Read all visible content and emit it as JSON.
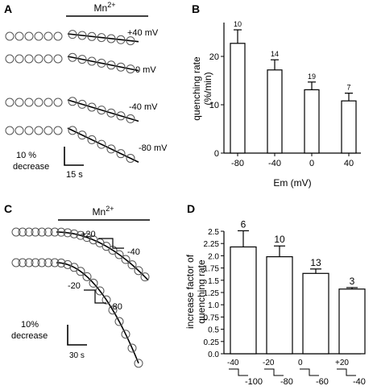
{
  "panels": {
    "A": {
      "label": "A",
      "stimulus": "Mn",
      "stimulus_sup": "2+",
      "traces": [
        {
          "label": "+40 mV"
        },
        {
          "label": "0 mV"
        },
        {
          "label": "-40 mV"
        },
        {
          "label": "-80 mV"
        }
      ],
      "scale_y": "10 %",
      "scale_y2": "decrease",
      "scale_x": "15 s"
    },
    "B": {
      "label": "B"
    },
    "C": {
      "label": "C",
      "stimulus": "Mn",
      "stimulus_sup": "2+",
      "step1_from": "+20",
      "step1_to": "-40",
      "step2_from": "-20",
      "step2_to": "-80",
      "scale_y": "10%",
      "scale_y2": "decrease",
      "scale_x": "30 s"
    },
    "D": {
      "label": "D",
      "protocols": [
        {
          "from": "-40",
          "to": "-100"
        },
        {
          "from": "-20",
          "to": "-80"
        },
        {
          "from": "0",
          "to": "-60"
        },
        {
          "from": "+20",
          "to": "-40"
        }
      ]
    }
  },
  "chart_data": [
    {
      "panel": "B",
      "type": "bar",
      "categories": [
        "-80",
        "-40",
        "0",
        "40"
      ],
      "values": [
        22.7,
        17.2,
        13.1,
        10.8
      ],
      "errors": [
        2.8,
        2.1,
        1.6,
        1.6
      ],
      "n": [
        "10",
        "14",
        "19",
        "7"
      ],
      "xlabel": "Em (mV)",
      "ylabel": "quenching rate",
      "ylabel2": "(%/min)",
      "ylim": [
        0,
        27
      ],
      "yticks": [
        0,
        10,
        20
      ],
      "ytick_labels": [
        "0",
        "10",
        "20"
      ],
      "grid": false
    },
    {
      "panel": "D",
      "type": "bar",
      "categories": [
        "-40 → -100",
        "-20 → -80",
        "0 → -60",
        "+20 → -40"
      ],
      "values": [
        2.18,
        1.98,
        1.64,
        1.32
      ],
      "errors": [
        0.33,
        0.22,
        0.09,
        0.03
      ],
      "n": [
        "6",
        "10",
        "13",
        "3"
      ],
      "ylabel": "increase factor of",
      "ylabel2": "quenching rate",
      "ylim": [
        0,
        2.5
      ],
      "yticks": [
        0,
        0.25,
        0.5,
        0.75,
        1,
        1.25,
        1.5,
        1.75,
        2,
        2.25,
        2.5
      ],
      "ytick_labels": [
        "0.0",
        "0.25",
        "0.5",
        "0.75",
        "1.0",
        "1.25",
        "1.5",
        "1.75",
        "2.0",
        "2.25",
        "2.5"
      ],
      "grid": false
    }
  ]
}
